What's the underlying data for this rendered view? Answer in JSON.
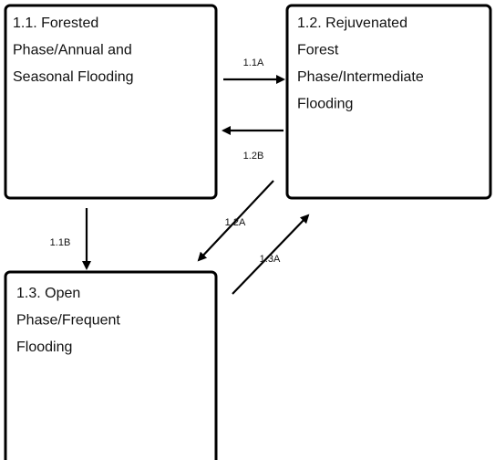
{
  "nodes": [
    {
      "lines": [
        "1.1. Forested",
        "Phase/Annual and",
        "Seasonal Flooding"
      ]
    },
    {
      "lines": [
        "1.2. Rejuvenated",
        "Forest",
        "Phase/Intermediate",
        "Flooding"
      ]
    },
    {
      "lines": [
        "1.3. Open",
        "Phase/Frequent",
        "Flooding"
      ]
    }
  ],
  "edges": [
    {
      "label": "1.1A"
    },
    {
      "label": "1.2B"
    },
    {
      "label": "1.1B"
    },
    {
      "label": "1.2A"
    },
    {
      "label": "1.3A"
    }
  ]
}
